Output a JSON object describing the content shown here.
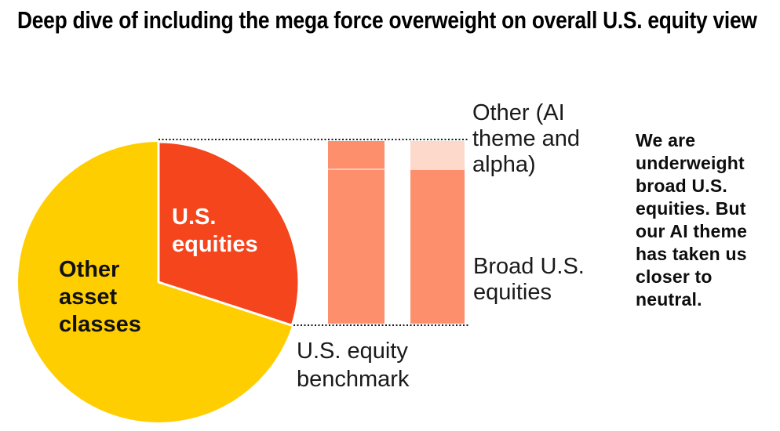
{
  "title": "Deep dive of including the mega force overweight on overall U.S. equity view",
  "pie": {
    "label_us": "U.S.\nequities",
    "label_other": "Other\nasset\nclasses"
  },
  "bars": {
    "label_benchmark": "U.S. equity\nbenchmark",
    "label_other_ai": "Other (AI\ntheme and\nalpha)",
    "label_broad": "Broad U.S.\nequities"
  },
  "annotation": "We are\nunderweight\nbroad U.S.\nequities. But\nour AI theme\nhas taken us\ncloser to\nneutral.",
  "colors": {
    "pie_other_yellow": "#FFCE00",
    "pie_us_orange": "#F4451C",
    "bar_salmon": "#FD8F6D",
    "bar_light_pink": "#FDD9CC",
    "bar_divider": "#FCC9B4",
    "dotted_line": "#1A1A1A",
    "text_black": "#1A1A1A",
    "pie_us_label_white": "#FFFFFF"
  },
  "chart_data": [
    {
      "type": "pie",
      "labels": [
        "Other asset classes",
        "U.S. equities"
      ],
      "values": [
        70,
        30
      ],
      "colors": [
        "#FFCE00",
        "#F4451C"
      ],
      "start_angle_deg": 0,
      "direction": "clockwise from 12 o'clock",
      "slice_edge_color": "#FFFFFF",
      "labels_inside": true
    },
    {
      "type": "bar",
      "stacked": true,
      "categories": [
        "U.S. equity benchmark",
        ""
      ],
      "series": [
        {
          "name": "Broad U.S. equities",
          "values": [
            84,
            84
          ],
          "colors": [
            "#FD8F6D",
            "#FD8F6D"
          ]
        },
        {
          "name": "Other (AI theme and alpha)",
          "values": [
            16,
            16
          ],
          "colors": [
            "#FD8F6D",
            "#FDD9CC"
          ]
        }
      ],
      "ylim": [
        0,
        100
      ],
      "grid": false,
      "value_axis_visible": false,
      "connector_lines": "dotted, linking pie slice span to bar tops and bottoms"
    }
  ]
}
